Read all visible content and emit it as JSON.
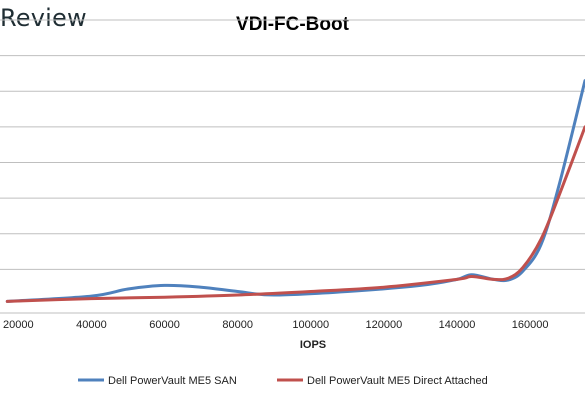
{
  "brand": "Review",
  "chart_data": {
    "type": "line",
    "title": "VDI-FC-Boot",
    "xlabel": "IOPS",
    "ylabel": "",
    "xlim": [
      15000,
      175000
    ],
    "x_ticks": [
      "20000",
      "40000",
      "60000",
      "80000",
      "100000",
      "120000",
      "140000",
      "160000"
    ],
    "ylim": [
      0,
      8
    ],
    "grid": true,
    "legend": "bottom",
    "series": [
      {
        "name": "Dell PowerVault ME5 SAN",
        "color": "#4f81bd",
        "x": [
          17000,
          40000,
          50000,
          60000,
          70000,
          80000,
          90000,
          110000,
          130000,
          140000,
          144000,
          150000,
          154000,
          158000,
          163000,
          168000,
          175000
        ],
        "y": [
          0.1,
          0.25,
          0.45,
          0.55,
          0.5,
          0.38,
          0.28,
          0.38,
          0.55,
          0.72,
          0.85,
          0.72,
          0.7,
          0.95,
          1.7,
          3.4,
          6.3
        ]
      },
      {
        "name": "Dell PowerVault ME5 Direct Attached",
        "color": "#c0504d",
        "x": [
          17000,
          40000,
          60000,
          80000,
          100000,
          120000,
          140000,
          144000,
          150000,
          154000,
          158000,
          163000,
          168000,
          175000
        ],
        "y": [
          0.1,
          0.18,
          0.22,
          0.28,
          0.38,
          0.5,
          0.72,
          0.8,
          0.72,
          0.75,
          1.05,
          1.85,
          3.1,
          5.0
        ]
      }
    ]
  }
}
